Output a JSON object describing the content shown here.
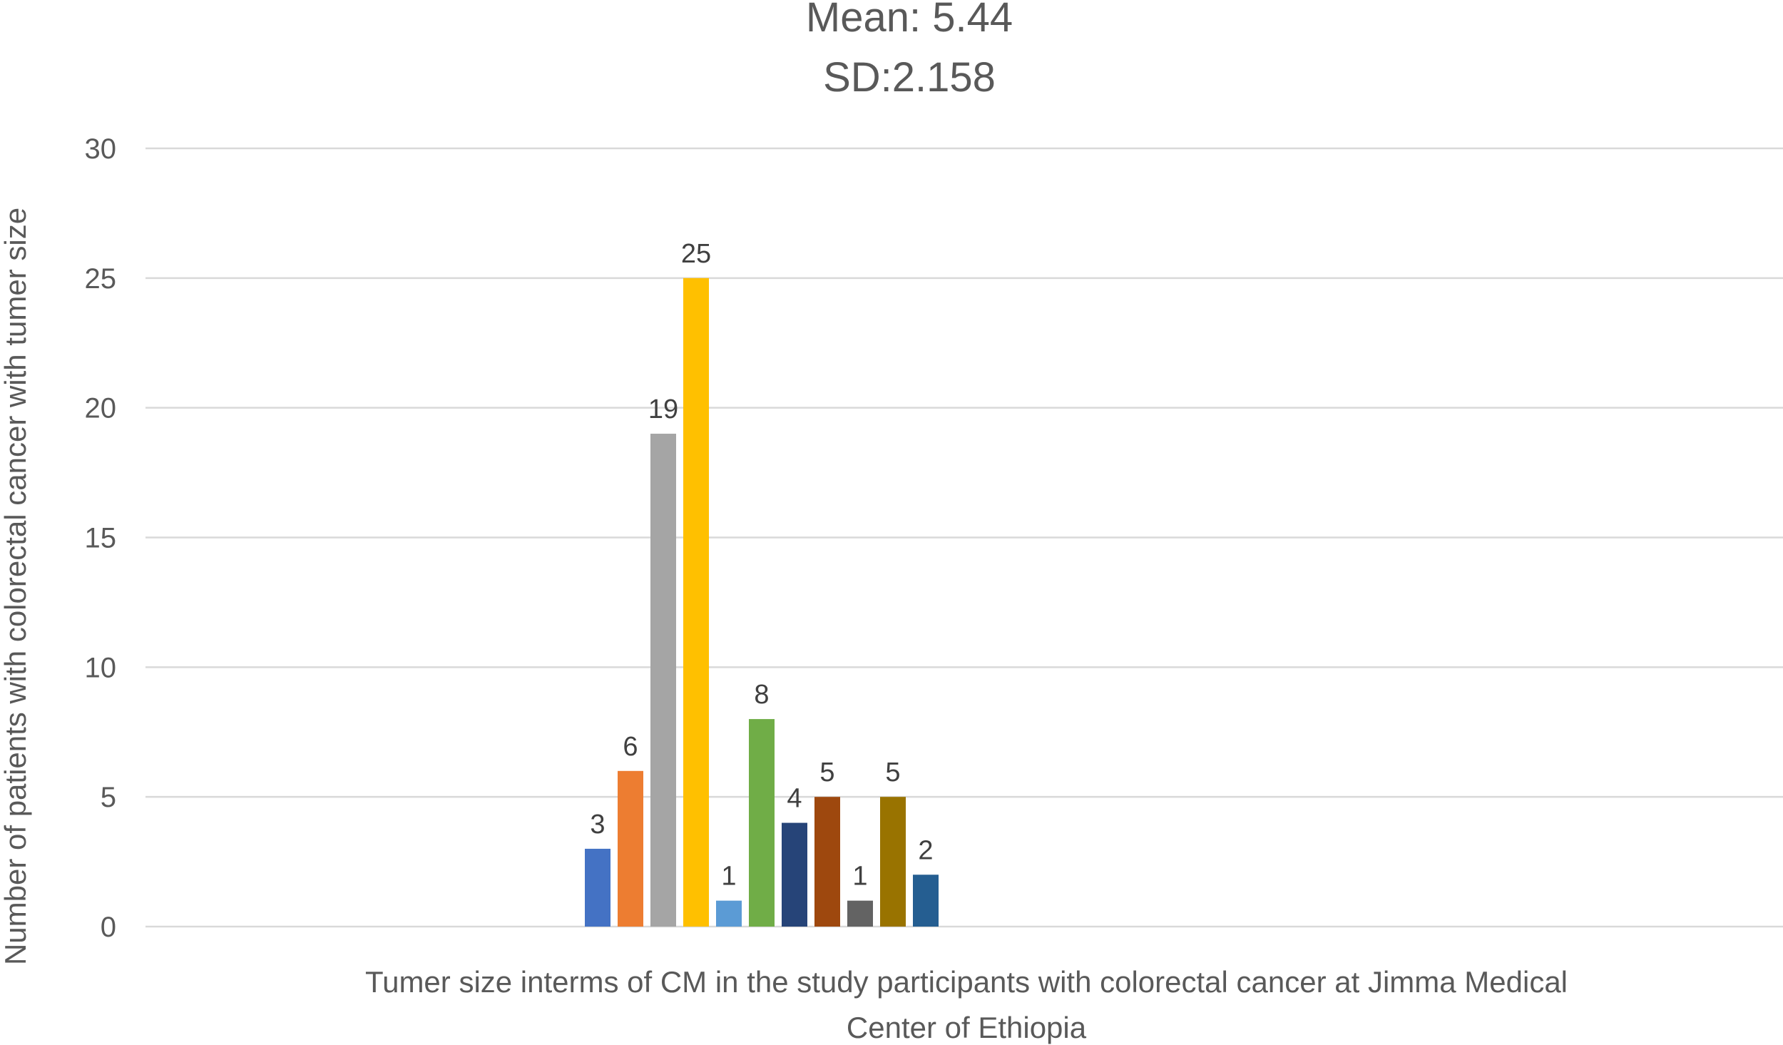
{
  "chart_data": {
    "type": "bar",
    "title_lines": [
      "Mean: 5.44",
      "SD:2.158"
    ],
    "xlabel_lines": [
      "Tumer size interms of CM in the study participants with colorectal cancer at Jimma Medical",
      "Center of Ethiopia"
    ],
    "ylabel": "Number of patients with colorectal cancer  with tumer size",
    "ylim": [
      0,
      30
    ],
    "yticks": [
      0,
      5,
      10,
      15,
      20,
      25,
      30
    ],
    "grid": true,
    "legend": "none",
    "values": [
      3,
      6,
      19,
      25,
      1,
      8,
      4,
      5,
      1,
      5,
      2
    ],
    "bar_colors": [
      "#4472C4",
      "#ED7D31",
      "#A5A5A5",
      "#FFC000",
      "#5B9BD5",
      "#70AD47",
      "#264478",
      "#9E480E",
      "#636363",
      "#997300",
      "#255E91"
    ],
    "data_labels": true
  }
}
